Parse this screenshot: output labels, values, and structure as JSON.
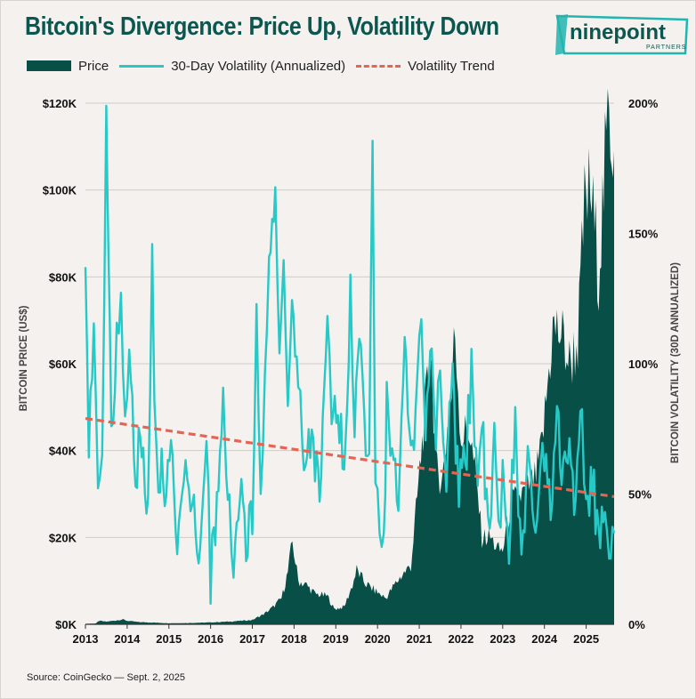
{
  "title": "Bitcoin's Divergence: Price Up, Volatility Down",
  "logo": {
    "main": "ninepoint",
    "sub": "PARTNERS"
  },
  "source": "Source: CoinGecko — Sept. 2, 2025",
  "colors": {
    "price": "#084f48",
    "volatility": "#27c9c7",
    "trend": "#e56452",
    "title": "#0b5750",
    "grid": "#d0ccc8"
  },
  "chart_data": {
    "type": "area",
    "title": "Bitcoin's Divergence: Price Up, Volatility Down",
    "legend": {
      "placement": "top-left",
      "entries": [
        "Price",
        "30-Day Volatility (Annualized)",
        "Volatility Trend"
      ]
    },
    "x_ticks": [
      "2013",
      "2014",
      "2015",
      "2016",
      "2017",
      "2018",
      "2019",
      "2020",
      "2021",
      "2022",
      "2023",
      "2024",
      "2025"
    ],
    "x_range": [
      2013.0,
      2025.67
    ],
    "y_left": {
      "label": "BITCOIN PRICE (US$)",
      "range": [
        0,
        120000
      ],
      "ticks": [
        "$0K",
        "$20K",
        "$40K",
        "$60K",
        "$80K",
        "$100K",
        "$120K"
      ]
    },
    "y_right": {
      "label": "BITCOIN VOLATILITY (30D ANNUALIZED)",
      "range": [
        0,
        200
      ],
      "ticks": [
        "0%",
        "50%",
        "100%",
        "150%",
        "200%"
      ]
    },
    "grid": true,
    "series": [
      {
        "name": "Price",
        "type": "area",
        "axis": "left",
        "x": [
          2013.0,
          2013.25,
          2013.33,
          2013.5,
          2013.9,
          2014.0,
          2014.3,
          2014.6,
          2015.0,
          2015.5,
          2016.0,
          2016.5,
          2017.0,
          2017.3,
          2017.5,
          2017.7,
          2017.85,
          2017.96,
          2018.1,
          2018.3,
          2018.5,
          2018.8,
          2018.96,
          2019.2,
          2019.4,
          2019.5,
          2019.7,
          2019.9,
          2020.2,
          2020.4,
          2020.6,
          2020.8,
          2020.95,
          2021.1,
          2021.28,
          2021.4,
          2021.55,
          2021.7,
          2021.86,
          2022.0,
          2022.2,
          2022.4,
          2022.5,
          2022.7,
          2022.9,
          2023.0,
          2023.2,
          2023.5,
          2023.8,
          2023.95,
          2024.2,
          2024.4,
          2024.6,
          2024.8,
          2024.96,
          2025.1,
          2025.3,
          2025.45,
          2025.55,
          2025.67
        ],
        "values": [
          100,
          200,
          800,
          600,
          1100,
          800,
          500,
          400,
          250,
          300,
          430,
          650,
          1000,
          2500,
          4000,
          6000,
          12000,
          19000,
          10000,
          9000,
          7000,
          6500,
          3500,
          4000,
          9000,
          12500,
          9500,
          8000,
          6000,
          9000,
          11500,
          13500,
          29000,
          45000,
          64000,
          36000,
          33000,
          48000,
          67000,
          43000,
          45000,
          30000,
          20000,
          20000,
          17000,
          17000,
          28000,
          30000,
          34000,
          42000,
          68000,
          67000,
          60000,
          65000,
          96000,
          100000,
          82000,
          105000,
          118000,
          109000
        ]
      },
      {
        "name": "30-Day Volatility (Annualized)",
        "type": "line",
        "axis": "right",
        "x": [
          2013.0,
          2013.08,
          2013.2,
          2013.3,
          2013.4,
          2013.5,
          2013.55,
          2013.62,
          2013.75,
          2013.85,
          2013.95,
          2014.05,
          2014.2,
          2014.35,
          2014.5,
          2014.6,
          2014.65,
          2014.75,
          2014.9,
          2015.05,
          2015.2,
          2015.4,
          2015.6,
          2015.75,
          2015.9,
          2016.0,
          2016.15,
          2016.3,
          2016.45,
          2016.55,
          2016.7,
          2016.85,
          2017.0,
          2017.1,
          2017.2,
          2017.3,
          2017.4,
          2017.55,
          2017.65,
          2017.75,
          2017.85,
          2017.95,
          2018.1,
          2018.2,
          2018.35,
          2018.5,
          2018.65,
          2018.8,
          2018.9,
          2019.05,
          2019.2,
          2019.35,
          2019.45,
          2019.6,
          2019.72,
          2019.8,
          2019.88,
          2019.95,
          2020.05,
          2020.15,
          2020.22,
          2020.35,
          2020.5,
          2020.65,
          2020.8,
          2020.95,
          2021.05,
          2021.15,
          2021.3,
          2021.4,
          2021.5,
          2021.65,
          2021.8,
          2021.95,
          2022.1,
          2022.25,
          2022.4,
          2022.5,
          2022.65,
          2022.8,
          2022.9,
          2023.0,
          2023.15,
          2023.3,
          2023.45,
          2023.6,
          2023.75,
          2023.9,
          2024.0,
          2024.15,
          2024.3,
          2024.45,
          2024.6,
          2024.75,
          2024.9,
          2025.0,
          2025.15,
          2025.3,
          2025.45,
          2025.55,
          2025.67
        ],
        "values": [
          130,
          70,
          120,
          45,
          60,
          200,
          140,
          70,
          110,
          130,
          80,
          100,
          55,
          75,
          40,
          155,
          90,
          60,
          55,
          75,
          35,
          60,
          50,
          25,
          80,
          15,
          50,
          90,
          45,
          25,
          55,
          30,
          45,
          115,
          60,
          90,
          140,
          170,
          110,
          130,
          85,
          125,
          100,
          60,
          75,
          60,
          55,
          110,
          75,
          90,
          50,
          125,
          80,
          105,
          55,
          75,
          185,
          55,
          40,
          35,
          85,
          70,
          40,
          115,
          60,
          90,
          110,
          65,
          115,
          75,
          100,
          60,
          90,
          55,
          60,
          95,
          45,
          80,
          35,
          70,
          40,
          55,
          30,
          75,
          20,
          60,
          35,
          65,
          60,
          40,
          85,
          55,
          75,
          45,
          80,
          40,
          55,
          35,
          45,
          25,
          35
        ]
      },
      {
        "name": "Volatility Trend",
        "type": "line",
        "axis": "right",
        "style": "dashed",
        "x": [
          2013.0,
          2025.67
        ],
        "values": [
          79,
          49
        ]
      }
    ]
  }
}
